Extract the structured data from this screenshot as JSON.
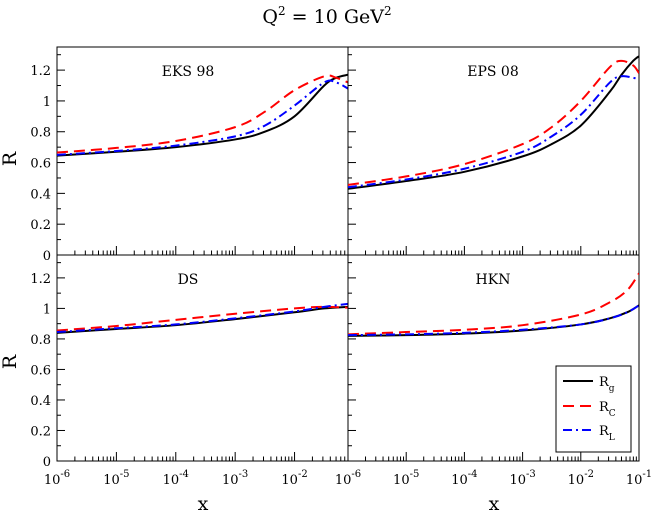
{
  "title": {
    "prefix": "Q",
    "sup": "2",
    "mid": " = 10 GeV",
    "sup2": "2"
  },
  "chart_data": {
    "type": "line",
    "title": "Q² = 10 GeV²",
    "xlabel": "x",
    "ylabel": "R",
    "xscale": "log",
    "ylim": [
      0,
      1.35
    ],
    "yticks": [
      0,
      0.2,
      0.4,
      0.6,
      0.8,
      1,
      1.2
    ],
    "ytick_labels": [
      "0",
      "0.2",
      "0.4",
      "0.6",
      "0.8",
      "1",
      "1.2"
    ],
    "xtick_labels": [
      {
        "base": "10",
        "exp": "-6"
      },
      {
        "base": "10",
        "exp": "-5"
      },
      {
        "base": "10",
        "exp": "-4"
      },
      {
        "base": "10",
        "exp": "-3"
      },
      {
        "base": "10",
        "exp": "-2"
      },
      {
        "base": "10",
        "exp": "-1"
      }
    ],
    "series_styles": [
      {
        "key": "Rg",
        "name": "R",
        "sub": "g",
        "color": "#000000",
        "dash": "solid"
      },
      {
        "key": "RC",
        "name": "R",
        "sub": "C",
        "color": "#ff0000",
        "dash": "dashed"
      },
      {
        "key": "RL",
        "name": "R",
        "sub": "L",
        "color": "#0000ff",
        "dash": "dashdot"
      }
    ],
    "panels": [
      {
        "label": "EKS 98",
        "xlim": [
          -6,
          -1.1
        ],
        "x": [
          -6,
          -5,
          -4,
          -3,
          -2.5,
          -2,
          -1.5,
          -1.3,
          -1.1
        ],
        "series": {
          "Rg": [
            0.645,
            0.67,
            0.7,
            0.75,
            0.8,
            0.9,
            1.1,
            1.15,
            1.17
          ],
          "RC": [
            0.665,
            0.695,
            0.74,
            0.83,
            0.93,
            1.07,
            1.16,
            1.15,
            1.12
          ],
          "RL": [
            0.65,
            0.675,
            0.71,
            0.77,
            0.84,
            0.97,
            1.12,
            1.12,
            1.08
          ]
        }
      },
      {
        "label": "EPS 08",
        "xlim": [
          -6,
          -1
        ],
        "x": [
          -6,
          -5,
          -4,
          -3,
          -2.5,
          -2,
          -1.5,
          -1.3,
          -1.1,
          -1
        ],
        "series": {
          "Rg": [
            0.43,
            0.48,
            0.54,
            0.64,
            0.72,
            0.84,
            1.06,
            1.17,
            1.26,
            1.29
          ],
          "RC": [
            0.455,
            0.51,
            0.59,
            0.72,
            0.83,
            1.0,
            1.22,
            1.26,
            1.23,
            1.18
          ],
          "RL": [
            0.44,
            0.49,
            0.56,
            0.67,
            0.77,
            0.91,
            1.12,
            1.16,
            1.15,
            1.14
          ]
        }
      },
      {
        "label": "DS",
        "xlim": [
          -6,
          -1.1
        ],
        "x": [
          -6,
          -5,
          -4,
          -3,
          -2,
          -1.5,
          -1.1
        ],
        "series": {
          "Rg": [
            0.84,
            0.865,
            0.89,
            0.93,
            0.975,
            1.0,
            1.01
          ],
          "RC": [
            0.855,
            0.885,
            0.925,
            0.965,
            1.0,
            1.01,
            1.005
          ],
          "RL": [
            0.845,
            0.87,
            0.895,
            0.935,
            0.98,
            1.01,
            1.03
          ]
        }
      },
      {
        "label": "HKN",
        "xlim": [
          -6,
          -1
        ],
        "x": [
          -6,
          -5,
          -4,
          -3,
          -2,
          -1.5,
          -1.2,
          -1
        ],
        "series": {
          "Rg": [
            0.82,
            0.825,
            0.835,
            0.855,
            0.895,
            0.935,
            0.975,
            1.02
          ],
          "RC": [
            0.83,
            0.845,
            0.86,
            0.89,
            0.96,
            1.04,
            1.12,
            1.23
          ],
          "RL": [
            0.825,
            0.83,
            0.84,
            0.86,
            0.895,
            0.935,
            0.975,
            1.02
          ]
        }
      }
    ],
    "legend": {
      "panel": "HKN",
      "placement": "bottom-right"
    }
  }
}
